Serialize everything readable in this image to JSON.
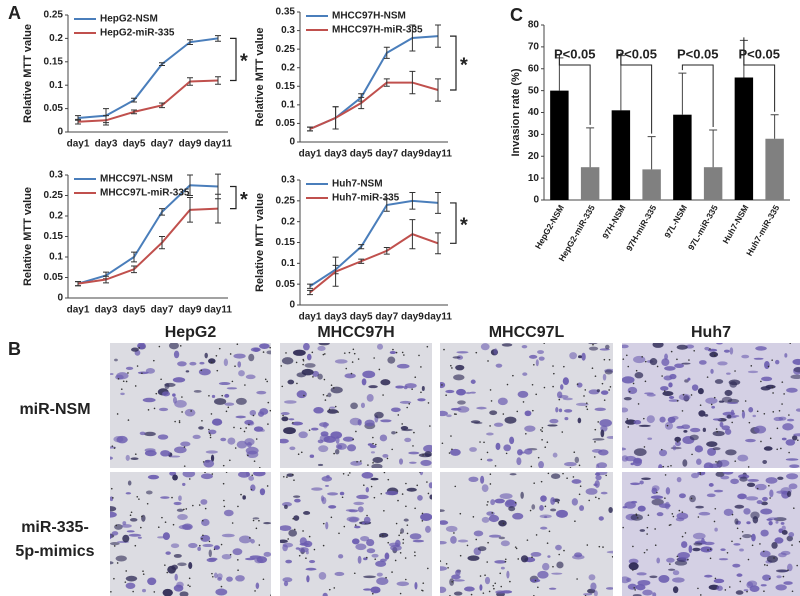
{
  "panel_labels": [
    "A",
    "B",
    "C"
  ],
  "chart_data": [
    {
      "type": "line",
      "ylabel": "Relative MTT value",
      "categories": [
        "day1",
        "day3",
        "day5",
        "day7",
        "day9",
        "day11"
      ],
      "ylim": [
        0,
        0.25
      ],
      "yticks": [
        0,
        0.05,
        0.1,
        0.15,
        0.2,
        0.25
      ],
      "annotation": "*",
      "series": [
        {
          "name": "HepG2-NSM",
          "color": "#4a7ebb",
          "values": [
            0.03,
            0.035,
            0.068,
            0.145,
            0.192,
            0.2
          ],
          "errors": [
            0.005,
            0.015,
            0.004,
            0.003,
            0.005,
            0.006
          ]
        },
        {
          "name": "HepG2-miR-335",
          "color": "#c0504d",
          "values": [
            0.022,
            0.025,
            0.043,
            0.057,
            0.108,
            0.11
          ],
          "errors": [
            0.005,
            0.01,
            0.004,
            0.005,
            0.008,
            0.008
          ]
        }
      ]
    },
    {
      "type": "line",
      "ylabel": "Relative MTT value",
      "categories": [
        "day1",
        "day3",
        "day5",
        "day7",
        "day9",
        "day11"
      ],
      "ylim": [
        0,
        0.35
      ],
      "yticks": [
        0,
        0.05,
        0.1,
        0.15,
        0.2,
        0.25,
        0.3,
        0.35
      ],
      "annotation": "*",
      "series": [
        {
          "name": "MHCC97H-NSM",
          "color": "#4a7ebb",
          "values": [
            0.035,
            0.065,
            0.12,
            0.24,
            0.28,
            0.285
          ],
          "errors": [
            0.005,
            0.03,
            0.01,
            0.015,
            0.035,
            0.03
          ]
        },
        {
          "name": "MHCC97H-miR-335",
          "color": "#c0504d",
          "values": [
            0.035,
            0.065,
            0.105,
            0.16,
            0.16,
            0.14
          ],
          "errors": [
            0.005,
            0.03,
            0.015,
            0.01,
            0.03,
            0.03
          ]
        }
      ]
    },
    {
      "type": "line",
      "ylabel": "Relative MTT value",
      "categories": [
        "day1",
        "day3",
        "day5",
        "day7",
        "day9",
        "day11"
      ],
      "ylim": [
        0,
        0.3
      ],
      "yticks": [
        0,
        0.05,
        0.1,
        0.15,
        0.2,
        0.25,
        0.3
      ],
      "annotation": "*",
      "series": [
        {
          "name": "MHCC97L-NSM",
          "color": "#4a7ebb",
          "values": [
            0.035,
            0.055,
            0.1,
            0.21,
            0.275,
            0.272
          ],
          "errors": [
            0.005,
            0.008,
            0.012,
            0.008,
            0.025,
            0.03
          ]
        },
        {
          "name": "MHCC97L-miR-335",
          "color": "#c0504d",
          "values": [
            0.035,
            0.045,
            0.07,
            0.135,
            0.215,
            0.218
          ],
          "errors": [
            0.005,
            0.008,
            0.008,
            0.015,
            0.03,
            0.035
          ]
        }
      ]
    },
    {
      "type": "line",
      "ylabel": "Relative MTT value",
      "categories": [
        "day1",
        "day3",
        "day5",
        "day7",
        "day9",
        "day11"
      ],
      "ylim": [
        0,
        0.3
      ],
      "yticks": [
        0,
        0.05,
        0.1,
        0.15,
        0.2,
        0.25,
        0.3
      ],
      "annotation": "*",
      "series": [
        {
          "name": "Huh7-NSM",
          "color": "#4a7ebb",
          "values": [
            0.045,
            0.085,
            0.14,
            0.24,
            0.25,
            0.245
          ],
          "errors": [
            0.005,
            0.01,
            0.005,
            0.015,
            0.02,
            0.025
          ]
        },
        {
          "name": "Huh7-miR-335",
          "color": "#c0504d",
          "values": [
            0.03,
            0.08,
            0.105,
            0.13,
            0.17,
            0.148
          ],
          "errors": [
            0.005,
            0.035,
            0.005,
            0.008,
            0.035,
            0.025
          ]
        }
      ]
    },
    {
      "type": "bar",
      "ylabel": "Invasion rate (%)",
      "categories": [
        "HepG2-NSM",
        "HepG2-miR-335",
        "97H-NSM",
        "97H-miR-335",
        "97L-NSM",
        "97L-miR-335",
        "Huh7-NSM",
        "Huh7-miR-335"
      ],
      "values": [
        50,
        15,
        41,
        14,
        39,
        15,
        56,
        28
      ],
      "errors": [
        15,
        18,
        25,
        15,
        19,
        17,
        17,
        11
      ],
      "colors": [
        "#000000",
        "#808080",
        "#000000",
        "#808080",
        "#000000",
        "#808080",
        "#000000",
        "#808080"
      ],
      "ylim": [
        0,
        80
      ],
      "yticks": [
        0,
        10,
        20,
        30,
        40,
        50,
        60,
        70,
        80
      ],
      "annotations": [
        "P<0.05",
        "P<0.05",
        "P<0.05",
        "P<0.05"
      ]
    }
  ],
  "images": {
    "columns": [
      "HepG2",
      "MHCC97H",
      "MHCC97L",
      "Huh7"
    ],
    "rows": [
      [
        "miR-NSM"
      ],
      [
        "miR-335-",
        "5p-mimics"
      ]
    ]
  }
}
